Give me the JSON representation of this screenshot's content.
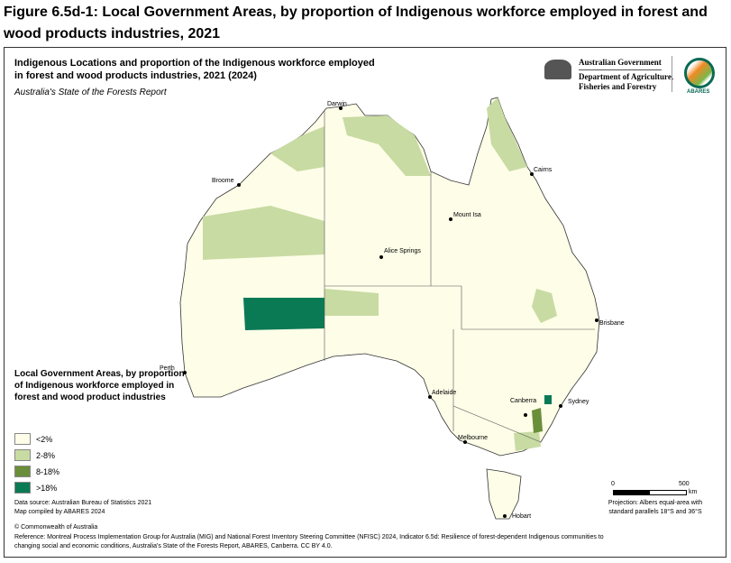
{
  "figure_title": "Figure 6.5d-1: Local Government Areas, by proportion of Indigenous workforce employed in forest and wood products industries, 2021",
  "map_title": "Indigenous Locations and proportion of the Indigenous workforce employed in forest and wood products industries, 2021 (2024)",
  "map_subtitle": "Australia's State of the Forests Report",
  "logos": {
    "gov_line1": "Australian Government",
    "gov_line2": "Department of Agriculture,",
    "gov_line3": "Fisheries and Forestry",
    "abares": "ABARES"
  },
  "legend": {
    "title": "Local Government Areas, by proportion of Indigenous workforce employed in forest and wood product industries",
    "items": [
      {
        "label": "<2%",
        "color": "#fdfde8"
      },
      {
        "label": "2-8%",
        "color": "#c8dba3"
      },
      {
        "label": "8-18%",
        "color": "#6b8e3a"
      },
      {
        "label": ">18%",
        "color": "#0a7a55"
      }
    ]
  },
  "cities": [
    "Darwin",
    "Cairns",
    "Broome",
    "Mount Isa",
    "Alice Springs",
    "Brisbane",
    "Perth",
    "Adelaide",
    "Sydney",
    "Canberra",
    "Melbourne",
    "Hobart"
  ],
  "scale": {
    "start": "0",
    "end": "500",
    "unit": "km"
  },
  "projection": "Projection: Albers equal-area with standard parallels 18°S and 36°S",
  "source": "Data source: Australian Bureau of Statistics 2021",
  "compiled": "Map compiled by ABARES 2024",
  "copyright": "© Commonwealth of Australia",
  "reference": "Reference: Montreal Process Implementation Group for Australia (MIG) and National Forest Inventory Steering Committee (NFISC) 2024, Indicator 6.5d: Resilience of forest-dependent Indigenous communities to changing social and economic conditions, Australia's State of the Forests Report, ABARES, Canberra. CC BY 4.0."
}
